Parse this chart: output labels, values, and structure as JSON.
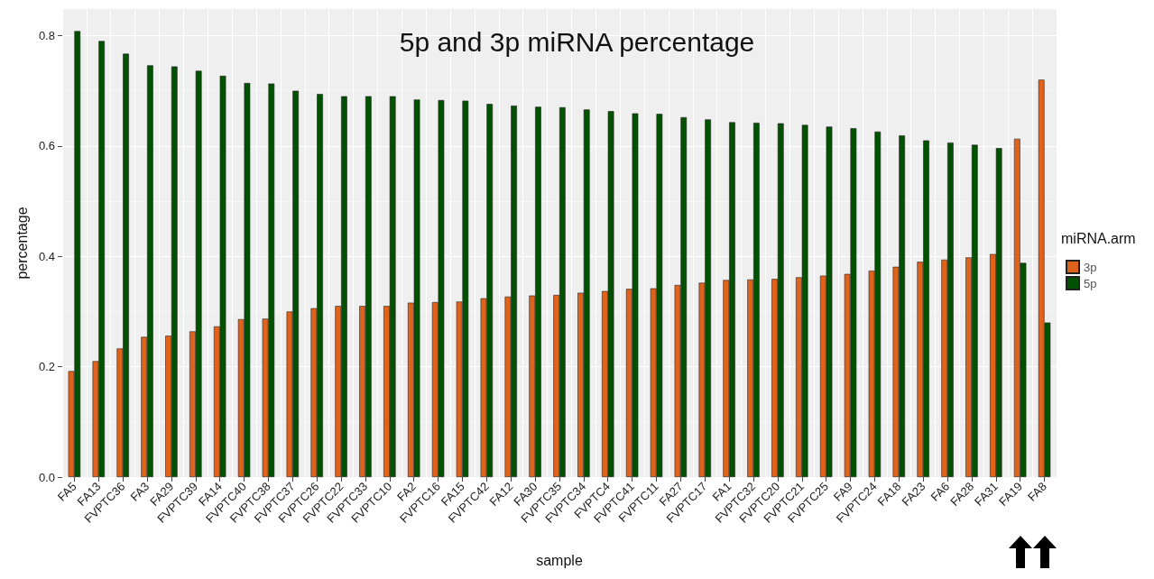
{
  "chart_data": {
    "type": "bar",
    "title": "5p and 3p miRNA percentage",
    "xlabel": "sample",
    "ylabel": "percentage",
    "legend_title": "miRNA.arm",
    "categories": [
      "FA5",
      "FA13",
      "FVPTC36",
      "FA3",
      "FA29",
      "FVPTC39",
      "FA14",
      "FVPTC40",
      "FVPTC38",
      "FVPTC37",
      "FVPTC26",
      "FVPTC22",
      "FVPTC33",
      "FVPTC10",
      "FA2",
      "FVPTC16",
      "FA15",
      "FVPTC42",
      "FA12",
      "FA30",
      "FVPTC35",
      "FVPTC34",
      "FVPTC4",
      "FVPTC41",
      "FVPTC11",
      "FA27",
      "FVPTC17",
      "FA1",
      "FVPTC32",
      "FVPTC20",
      "FVPTC21",
      "FVPTC25",
      "FA9",
      "FVPTC24",
      "FA18",
      "FA23",
      "FA6",
      "FA28",
      "FA31",
      "FA19",
      "FA8"
    ],
    "series": [
      {
        "name": "3p",
        "color": "#e0631c",
        "values": [
          0.192,
          0.21,
          0.233,
          0.254,
          0.256,
          0.264,
          0.273,
          0.286,
          0.287,
          0.3,
          0.306,
          0.31,
          0.31,
          0.31,
          0.316,
          0.317,
          0.318,
          0.324,
          0.327,
          0.329,
          0.33,
          0.334,
          0.337,
          0.341,
          0.342,
          0.348,
          0.352,
          0.357,
          0.358,
          0.359,
          0.362,
          0.365,
          0.368,
          0.374,
          0.381,
          0.39,
          0.394,
          0.398,
          0.404,
          0.613,
          0.72
        ]
      },
      {
        "name": "5p",
        "color": "#005200",
        "values": [
          0.808,
          0.79,
          0.767,
          0.746,
          0.744,
          0.736,
          0.727,
          0.714,
          0.713,
          0.7,
          0.694,
          0.69,
          0.69,
          0.69,
          0.684,
          0.683,
          0.682,
          0.676,
          0.673,
          0.671,
          0.67,
          0.666,
          0.663,
          0.659,
          0.658,
          0.652,
          0.648,
          0.643,
          0.642,
          0.641,
          0.638,
          0.635,
          0.632,
          0.626,
          0.619,
          0.61,
          0.606,
          0.602,
          0.596,
          0.388,
          0.28
        ]
      }
    ],
    "ylim": [
      0,
      0.848
    ],
    "yticks": [
      {
        "value": 0,
        "label": "0.0"
      },
      0.2,
      0.4,
      0.6,
      0.8
    ],
    "grid": true,
    "legend": "right"
  }
}
